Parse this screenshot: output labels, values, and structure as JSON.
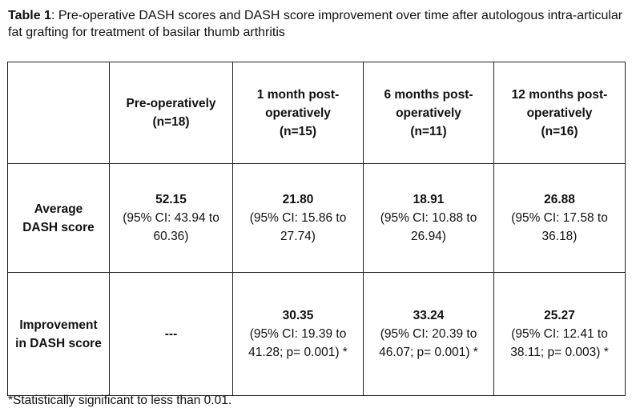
{
  "caption": {
    "label": "Table 1",
    "text": ": Pre-operative DASH scores and DASH score improvement over time after autologous intra-articular fat grafting for treatment of basilar thumb arthritis"
  },
  "table": {
    "columns": [
      {
        "title": "Pre-operatively",
        "n": "(n=18)"
      },
      {
        "title": "1 month post-operatively",
        "n": "(n=15)"
      },
      {
        "title": "6 months post-operatively",
        "n": "(n=11)"
      },
      {
        "title": "12 months post-operatively",
        "n": "(n=16)"
      }
    ],
    "rows": [
      {
        "label": "Average DASH score",
        "cells": [
          {
            "value": "52.15",
            "ci": "(95% CI: 43.94 to 60.36)"
          },
          {
            "value": "21.80",
            "ci": "(95% CI: 15.86 to 27.74)"
          },
          {
            "value": "18.91",
            "ci": "(95% CI: 10.88 to 26.94)"
          },
          {
            "value": "26.88",
            "ci": "(95% CI: 17.58 to 36.18)"
          }
        ]
      },
      {
        "label": "Improvement in DASH score",
        "cells": [
          {
            "value": "---",
            "ci": ""
          },
          {
            "value": "30.35",
            "ci": "(95% CI: 19.39 to 41.28; p= 0.001) *"
          },
          {
            "value": "33.24",
            "ci": "(95% CI: 20.39 to 46.07; p= 0.001) *"
          },
          {
            "value": "25.27",
            "ci": "(95% CI: 12.41 to 38.11; p= 0.003) *"
          }
        ]
      }
    ]
  },
  "footnote": "*Statistically significant to less than 0.01."
}
